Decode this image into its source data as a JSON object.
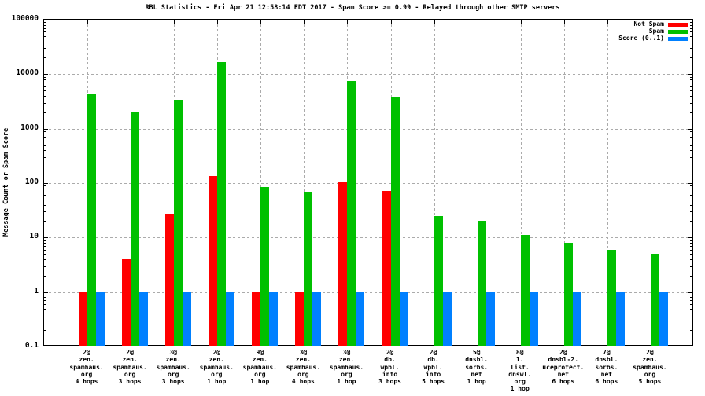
{
  "title": "RBL Statistics - Fri Apr 21 12:58:14 EDT 2017 - Spam Score >= 0.99 - Relayed through other SMTP servers",
  "y_axis": {
    "label": "Message Count or Spam Score",
    "tick_labels": [
      "100000",
      "10000",
      "1000",
      "100",
      "10",
      "1",
      "0.1"
    ]
  },
  "legend": {
    "position": "top-right",
    "entries": [
      {
        "label": "Not Spam",
        "color": "#ff0000"
      },
      {
        "label": "Spam",
        "color": "#00c000"
      },
      {
        "label": "Score (0..1)",
        "color": "#0080ff"
      }
    ]
  },
  "chart_data": {
    "type": "bar",
    "scale": "log10",
    "ylim": [
      0.1,
      100000
    ],
    "grid": true,
    "legend_position": "top-right",
    "title": "RBL Statistics - Fri Apr 21 12:58:14 EDT 2017 - Spam Score >= 0.99 - Relayed through other SMTP servers",
    "xlabel": "",
    "ylabel": "Message Count or Spam Score",
    "y_ticks": [
      100000,
      10000,
      1000,
      100,
      10,
      1,
      0.1
    ],
    "categories": [
      [
        "2@",
        "zen.",
        "spamhaus.",
        "org",
        "4 hops"
      ],
      [
        "2@",
        "zen.",
        "spamhaus.",
        "org",
        "3 hops"
      ],
      [
        "3@",
        "zen.",
        "spamhaus.",
        "org",
        "3 hops"
      ],
      [
        "2@",
        "zen.",
        "spamhaus.",
        "org",
        "1 hop"
      ],
      [
        "9@",
        "zen.",
        "spamhaus.",
        "org",
        "1 hop"
      ],
      [
        "3@",
        "zen.",
        "spamhaus.",
        "org",
        "4 hops"
      ],
      [
        "3@",
        "zen.",
        "spamhaus.",
        "org",
        "1 hop"
      ],
      [
        "2@",
        "db.",
        "wpbl.",
        "info",
        "3 hops"
      ],
      [
        "2@",
        "db.",
        "wpbl.",
        "info",
        "5 hops"
      ],
      [
        "5@",
        "dnsbl.",
        "sorbs.",
        "net",
        "1 hop"
      ],
      [
        "8@",
        "1.",
        "list.",
        "dnswl.",
        "org",
        "1 hop"
      ],
      [
        "2@",
        "dnsbl-2.",
        "uceprotect.",
        "net",
        "6 hops"
      ],
      [
        "7@",
        "dnsbl.",
        "sorbs.",
        "net",
        "6 hops"
      ],
      [
        "2@",
        "zen.",
        "spamhaus.",
        "org",
        "5 hops"
      ]
    ],
    "series": [
      {
        "name": "Not Spam",
        "color": "#ff0000",
        "values": [
          1,
          4,
          27,
          134,
          1,
          1,
          103,
          72,
          null,
          null,
          null,
          null,
          null,
          null
        ]
      },
      {
        "name": "Spam",
        "color": "#00c000",
        "values": [
          4400,
          2000,
          3400,
          16500,
          85,
          70,
          7400,
          3700,
          25,
          20,
          11,
          8,
          6,
          5
        ]
      },
      {
        "name": "Score (0..1)",
        "color": "#0080ff",
        "values": [
          1,
          1,
          1,
          1,
          1,
          1,
          1,
          1,
          1,
          1,
          1,
          1,
          1,
          1
        ]
      }
    ]
  }
}
